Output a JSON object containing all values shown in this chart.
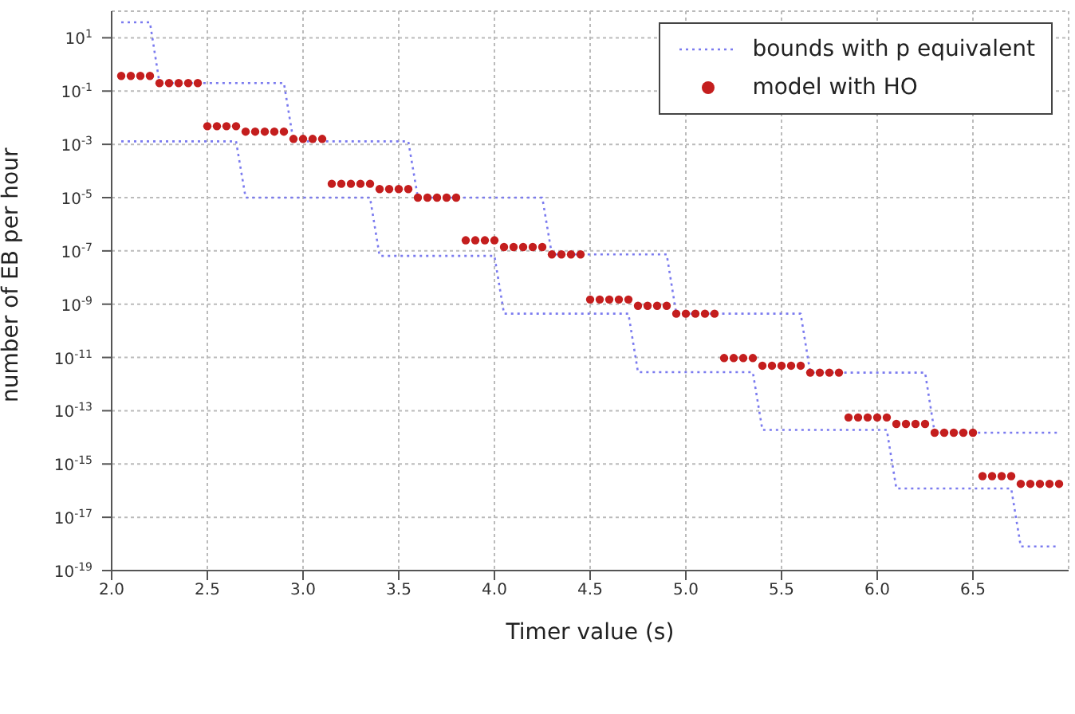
{
  "chart_data": {
    "type": "line",
    "xlabel": "Timer value (s)",
    "ylabel": "number of EB per hour",
    "x": [
      2.05,
      2.1,
      2.15,
      2.2,
      2.25,
      2.3,
      2.35,
      2.4,
      2.45,
      2.5,
      2.55,
      2.6,
      2.65,
      2.7,
      2.75,
      2.8,
      2.85,
      2.9,
      2.95,
      3.0,
      3.05,
      3.1,
      3.15,
      3.2,
      3.25,
      3.3,
      3.35,
      3.4,
      3.45,
      3.5,
      3.55,
      3.6,
      3.65,
      3.7,
      3.75,
      3.8,
      3.85,
      3.9,
      3.95,
      4.0,
      4.05,
      4.1,
      4.15,
      4.2,
      4.25,
      4.3,
      4.35,
      4.4,
      4.45,
      4.5,
      4.55,
      4.6,
      4.65,
      4.7,
      4.75,
      4.8,
      4.85,
      4.9,
      4.95,
      5.0,
      5.05,
      5.1,
      5.15,
      5.2,
      5.25,
      5.3,
      5.35,
      5.4,
      5.45,
      5.5,
      5.55,
      5.6,
      5.65,
      5.7,
      5.75,
      5.8,
      5.85,
      5.9,
      5.95,
      6.0,
      6.05,
      6.1,
      6.15,
      6.2,
      6.25,
      6.3,
      6.35,
      6.4,
      6.45,
      6.5,
      6.55,
      6.6,
      6.65,
      6.7,
      6.75,
      6.8,
      6.85,
      6.9,
      6.95
    ],
    "series": [
      {
        "name": "bounds with p equivalent",
        "color": "#7b7bef",
        "line_style": "dotted",
        "marker": "none",
        "values": [
          38,
          38,
          38,
          38,
          0.2,
          0.2,
          0.2,
          0.2,
          0.2,
          0.2,
          0.2,
          0.2,
          0.2,
          0.2,
          0.2,
          0.2,
          0.2,
          0.2,
          0.0013,
          0.0013,
          0.0013,
          0.0013,
          0.0013,
          0.0013,
          0.0013,
          0.0013,
          0.0013,
          0.0013,
          0.0013,
          0.0013,
          0.0013,
          1e-05,
          1e-05,
          1e-05,
          1e-05,
          1e-05,
          1e-05,
          1e-05,
          1e-05,
          1e-05,
          1e-05,
          1e-05,
          1e-05,
          1e-05,
          1e-05,
          7.4e-08,
          7.4e-08,
          7.4e-08,
          7.4e-08,
          7.4e-08,
          7.4e-08,
          7.4e-08,
          7.4e-08,
          7.4e-08,
          7.4e-08,
          7.4e-08,
          7.4e-08,
          7.4e-08,
          4.4e-10,
          4.4e-10,
          4.4e-10,
          4.4e-10,
          4.4e-10,
          4.4e-10,
          4.4e-10,
          4.4e-10,
          4.4e-10,
          4.4e-10,
          4.4e-10,
          4.4e-10,
          4.4e-10,
          4.4e-10,
          2.7e-12,
          2.7e-12,
          2.7e-12,
          2.7e-12,
          2.7e-12,
          2.7e-12,
          2.7e-12,
          2.7e-12,
          2.7e-12,
          2.7e-12,
          2.7e-12,
          2.7e-12,
          2.7e-12,
          1.5e-14,
          1.5e-14,
          1.5e-14,
          1.5e-14,
          1.5e-14,
          1.5e-14,
          1.5e-14,
          1.5e-14,
          1.5e-14,
          1.5e-14,
          1.5e-14,
          1.5e-14,
          1.5e-14,
          1.5e-14
        ]
      },
      {
        "color": "#7b7bef",
        "line_style": "dotted",
        "marker": "none",
        "values": [
          0.0013,
          0.0013,
          0.0013,
          0.0013,
          0.0013,
          0.0013,
          0.0013,
          0.0013,
          0.0013,
          0.0013,
          0.0013,
          0.0013,
          0.0013,
          1e-05,
          1e-05,
          1e-05,
          1e-05,
          1e-05,
          1e-05,
          1e-05,
          1e-05,
          1e-05,
          1e-05,
          1e-05,
          1e-05,
          1e-05,
          1e-05,
          6.5e-08,
          6.5e-08,
          6.5e-08,
          6.5e-08,
          6.5e-08,
          6.5e-08,
          6.5e-08,
          6.5e-08,
          6.5e-08,
          6.5e-08,
          6.5e-08,
          6.5e-08,
          6.5e-08,
          4.4e-10,
          4.4e-10,
          4.4e-10,
          4.4e-10,
          4.4e-10,
          4.4e-10,
          4.4e-10,
          4.4e-10,
          4.4e-10,
          4.4e-10,
          4.4e-10,
          4.4e-10,
          4.4e-10,
          4.4e-10,
          2.8e-12,
          2.8e-12,
          2.8e-12,
          2.8e-12,
          2.8e-12,
          2.8e-12,
          2.8e-12,
          2.8e-12,
          2.8e-12,
          2.8e-12,
          2.8e-12,
          2.8e-12,
          2.8e-12,
          1.9e-14,
          1.9e-14,
          1.9e-14,
          1.9e-14,
          1.9e-14,
          1.9e-14,
          1.9e-14,
          1.9e-14,
          1.9e-14,
          1.9e-14,
          1.9e-14,
          1.9e-14,
          1.9e-14,
          1.9e-14,
          1.2e-16,
          1.2e-16,
          1.2e-16,
          1.2e-16,
          1.2e-16,
          1.2e-16,
          1.2e-16,
          1.2e-16,
          1.2e-16,
          1.2e-16,
          1.2e-16,
          1.2e-16,
          1.2e-16,
          8e-19,
          8e-19,
          8e-19,
          8e-19,
          8e-19
        ]
      },
      {
        "name": "model with HO",
        "type": "scatter",
        "color": "#c41e1e",
        "marker": "circle",
        "values": [
          0.37,
          0.37,
          0.37,
          0.37,
          0.2,
          0.2,
          0.2,
          0.2,
          0.2,
          0.0048,
          0.0048,
          0.0048,
          0.0048,
          0.003,
          0.003,
          0.003,
          0.003,
          0.003,
          0.0016,
          0.0016,
          0.0016,
          0.0016,
          3.3e-05,
          3.3e-05,
          3.3e-05,
          3.3e-05,
          3.3e-05,
          2.1e-05,
          2.1e-05,
          2.1e-05,
          2.1e-05,
          1e-05,
          1e-05,
          1e-05,
          1e-05,
          1e-05,
          2.5e-07,
          2.5e-07,
          2.5e-07,
          2.5e-07,
          1.4e-07,
          1.4e-07,
          1.4e-07,
          1.4e-07,
          1.4e-07,
          7.4e-08,
          7.4e-08,
          7.4e-08,
          7.4e-08,
          1.5e-09,
          1.5e-09,
          1.5e-09,
          1.5e-09,
          1.5e-09,
          8.7e-10,
          8.7e-10,
          8.7e-10,
          8.7e-10,
          4.4e-10,
          4.4e-10,
          4.4e-10,
          4.4e-10,
          4.4e-10,
          9.5e-12,
          9.5e-12,
          9.5e-12,
          9.5e-12,
          4.9e-12,
          4.9e-12,
          4.9e-12,
          4.9e-12,
          4.9e-12,
          2.7e-12,
          2.7e-12,
          2.7e-12,
          2.7e-12,
          5.6e-14,
          5.6e-14,
          5.6e-14,
          5.6e-14,
          5.6e-14,
          3.2e-14,
          3.2e-14,
          3.2e-14,
          3.2e-14,
          1.5e-14,
          1.5e-14,
          1.5e-14,
          1.5e-14,
          1.5e-14,
          3.5e-16,
          3.5e-16,
          3.5e-16,
          3.5e-16,
          1.8e-16,
          1.8e-16,
          1.8e-16,
          1.8e-16,
          1.8e-16
        ]
      }
    ],
    "xlim": [
      2,
      7
    ],
    "xticks": [
      {
        "value": 2,
        "label": "2.0"
      },
      {
        "value": 2.5,
        "label": "2.5"
      },
      {
        "value": 3,
        "label": "3.0"
      },
      {
        "value": 3.5,
        "label": "3.5"
      },
      {
        "value": 4,
        "label": "4.0"
      },
      {
        "value": 4.5,
        "label": "4.5"
      },
      {
        "value": 5,
        "label": "5.0"
      },
      {
        "value": 5.5,
        "label": "5.5"
      },
      {
        "value": 6,
        "label": "6.0"
      },
      {
        "value": 6.5,
        "label": "6.5"
      }
    ],
    "log": "y",
    "ylim": [
      1e-19,
      100
    ],
    "yticks": [
      {
        "value": 1e-19,
        "label": "10$^{-19}$"
      },
      {
        "value": 1e-17,
        "label": "10$^{-17}$"
      },
      {
        "value": 1e-15,
        "label": "10$^{-15}$"
      },
      {
        "value": 1e-13,
        "label": "10$^{-13}$"
      },
      {
        "value": 1e-11,
        "label": "10$^{-11}$"
      },
      {
        "value": 1e-09,
        "label": "10$^{-9}$"
      },
      {
        "value": 1e-07,
        "label": "10$^{-7}$"
      },
      {
        "value": 1e-05,
        "label": "10$^{-5}$"
      },
      {
        "value": 0.001,
        "label": "10$^{-3}$"
      },
      {
        "value": 0.1,
        "label": "10$^{-1}$"
      },
      {
        "value": 10,
        "label": "10$^{1}$"
      }
    ],
    "grid": true,
    "legend": "top right"
  }
}
